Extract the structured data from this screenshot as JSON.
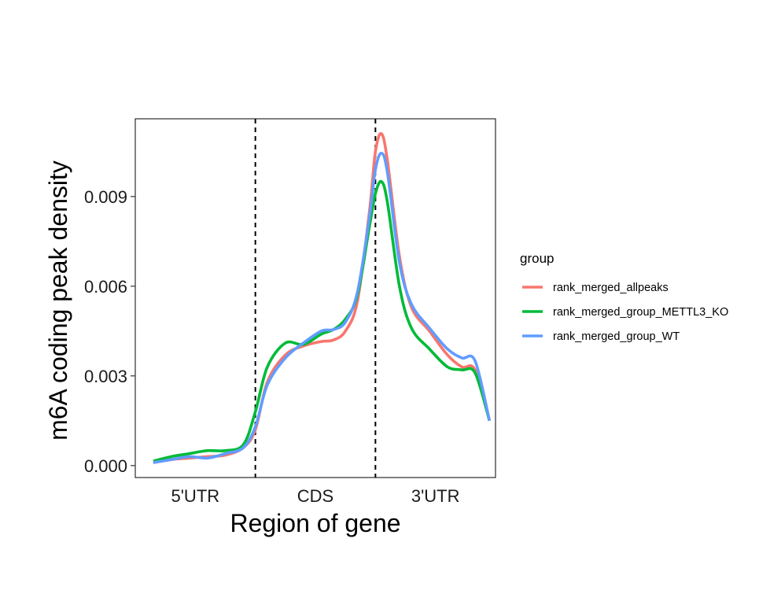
{
  "chart_data": {
    "type": "line",
    "ylabel": "m6A coding peak density",
    "xlabel": "Region of gene",
    "xlim": [
      0,
      3
    ],
    "ylim": [
      -0.0004,
      0.0116
    ],
    "y_ticks": [
      0.0,
      0.003,
      0.006,
      0.009
    ],
    "y_tick_labels": [
      "0.000",
      "0.003",
      "0.006",
      "0.009"
    ],
    "regions": [
      {
        "label": "5'UTR",
        "center": 0.5
      },
      {
        "label": "CDS",
        "center": 1.5
      },
      {
        "label": "3'UTR",
        "center": 2.5
      }
    ],
    "boundaries": [
      1,
      2
    ],
    "grid": false,
    "legend": {
      "title": "group",
      "position": "right"
    },
    "series": [
      {
        "name": "rank_merged_allpeaks",
        "color": "#F8766D",
        "points": [
          [
            0.15,
            0.0001
          ],
          [
            0.3,
            0.0002
          ],
          [
            0.45,
            0.00025
          ],
          [
            0.6,
            0.0003
          ],
          [
            0.75,
            0.00035
          ],
          [
            0.9,
            0.0006
          ],
          [
            1.0,
            0.0012
          ],
          [
            1.1,
            0.0028
          ],
          [
            1.25,
            0.0037
          ],
          [
            1.4,
            0.004
          ],
          [
            1.55,
            0.00415
          ],
          [
            1.65,
            0.0042
          ],
          [
            1.75,
            0.0045
          ],
          [
            1.85,
            0.0055
          ],
          [
            1.95,
            0.0085
          ],
          [
            2.0,
            0.0105
          ],
          [
            2.05,
            0.0111
          ],
          [
            2.1,
            0.0102
          ],
          [
            2.2,
            0.007
          ],
          [
            2.3,
            0.0053
          ],
          [
            2.45,
            0.0045
          ],
          [
            2.6,
            0.0037
          ],
          [
            2.72,
            0.0033
          ],
          [
            2.83,
            0.0032
          ],
          [
            2.95,
            0.0015
          ]
        ]
      },
      {
        "name": "rank_merged_group_METTL3_KO",
        "color": "#00BA38",
        "points": [
          [
            0.15,
            0.00015
          ],
          [
            0.3,
            0.0003
          ],
          [
            0.45,
            0.0004
          ],
          [
            0.6,
            0.0005
          ],
          [
            0.75,
            0.0005
          ],
          [
            0.9,
            0.0007
          ],
          [
            1.0,
            0.0018
          ],
          [
            1.1,
            0.0033
          ],
          [
            1.25,
            0.0041
          ],
          [
            1.4,
            0.00405
          ],
          [
            1.55,
            0.0044
          ],
          [
            1.65,
            0.00455
          ],
          [
            1.75,
            0.0049
          ],
          [
            1.85,
            0.0057
          ],
          [
            1.95,
            0.008
          ],
          [
            2.0,
            0.0091
          ],
          [
            2.05,
            0.0095
          ],
          [
            2.1,
            0.0088
          ],
          [
            2.2,
            0.006
          ],
          [
            2.3,
            0.0046
          ],
          [
            2.45,
            0.0039
          ],
          [
            2.6,
            0.0033
          ],
          [
            2.72,
            0.0032
          ],
          [
            2.83,
            0.0031
          ],
          [
            2.95,
            0.0015
          ]
        ]
      },
      {
        "name": "rank_merged_group_WT",
        "color": "#619CFF",
        "points": [
          [
            0.15,
            0.0001
          ],
          [
            0.3,
            0.0002
          ],
          [
            0.45,
            0.0003
          ],
          [
            0.6,
            0.00025
          ],
          [
            0.75,
            0.0004
          ],
          [
            0.9,
            0.0006
          ],
          [
            1.0,
            0.0013
          ],
          [
            1.1,
            0.0027
          ],
          [
            1.25,
            0.0036
          ],
          [
            1.4,
            0.0041
          ],
          [
            1.55,
            0.0045
          ],
          [
            1.65,
            0.00455
          ],
          [
            1.75,
            0.0048
          ],
          [
            1.85,
            0.0058
          ],
          [
            1.95,
            0.0083
          ],
          [
            2.0,
            0.0099
          ],
          [
            2.05,
            0.01045
          ],
          [
            2.1,
            0.0098
          ],
          [
            2.2,
            0.0068
          ],
          [
            2.3,
            0.0054
          ],
          [
            2.45,
            0.0046
          ],
          [
            2.6,
            0.0039
          ],
          [
            2.72,
            0.0036
          ],
          [
            2.83,
            0.0035
          ],
          [
            2.95,
            0.0015
          ]
        ]
      }
    ]
  }
}
